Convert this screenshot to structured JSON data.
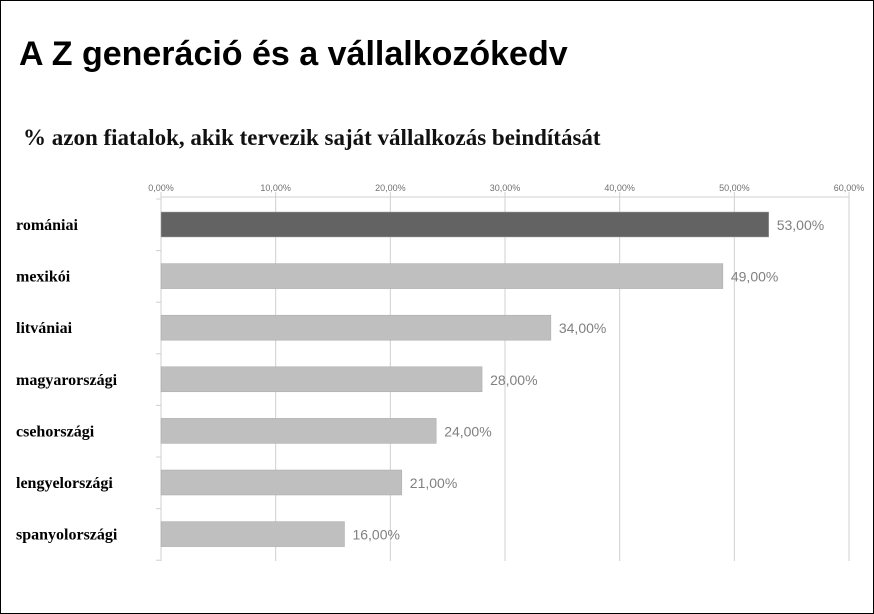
{
  "page": {
    "title": "A Z generáció és a vállalkozókedv",
    "subtitle": "% azon fiatalok, akik tervezik saját vállalkozás beindítását"
  },
  "chart_data": {
    "type": "bar",
    "orientation": "horizontal",
    "categories": [
      "romániai",
      "mexikói",
      "litvániai",
      "magyarországi",
      "csehországi",
      "lengyelországi",
      "spanyolországi"
    ],
    "values": [
      53,
      49,
      34,
      28,
      24,
      21,
      16
    ],
    "value_labels": [
      "53,00%",
      "49,00%",
      "34,00%",
      "28,00%",
      "24,00%",
      "21,00%",
      "16,00%"
    ],
    "x_ticks": [
      "0,00%",
      "10,00%",
      "20,00%",
      "30,00%",
      "40,00%",
      "50,00%",
      "60,00%"
    ],
    "xlim": [
      0,
      60
    ],
    "grid": true,
    "axis_position": "top",
    "colors": {
      "highlight": "#636363",
      "default": "#bfbfbf",
      "grid": "#d0d0d0",
      "tick_text": "#707070",
      "value_text": "#808080"
    }
  }
}
